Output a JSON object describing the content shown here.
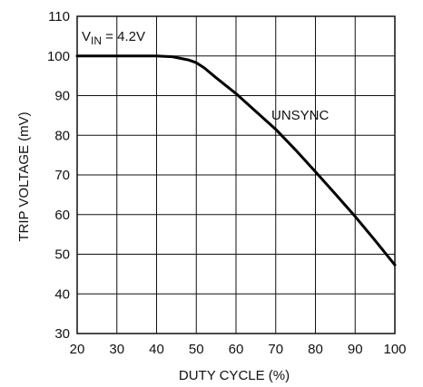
{
  "chart_data": {
    "type": "line",
    "title": "",
    "xlabel": "DUTY CYCLE (%)",
    "ylabel": "TRIP VOLTAGE (mV)",
    "xlim": [
      20,
      100
    ],
    "ylim": [
      30,
      110
    ],
    "xticks": [
      20,
      30,
      40,
      50,
      60,
      70,
      80,
      90,
      100
    ],
    "yticks": [
      30,
      40,
      50,
      60,
      70,
      80,
      90,
      100,
      110
    ],
    "grid": true,
    "legend": "none",
    "annotations": {
      "condition_main": "V",
      "condition_sub": "IN",
      "condition_rest": " = 4.2V"
    },
    "series": [
      {
        "name": "UNSYNC",
        "x": [
          20,
          30,
          40,
          44,
          48,
          50,
          52,
          55,
          60,
          65,
          70,
          75,
          80,
          85,
          90,
          95,
          100
        ],
        "y": [
          100,
          100,
          100,
          99.8,
          99,
          98.3,
          97,
          94.5,
          90.5,
          86,
          81.5,
          76.3,
          70.8,
          65.2,
          59.5,
          53.5,
          47.3
        ]
      }
    ]
  }
}
